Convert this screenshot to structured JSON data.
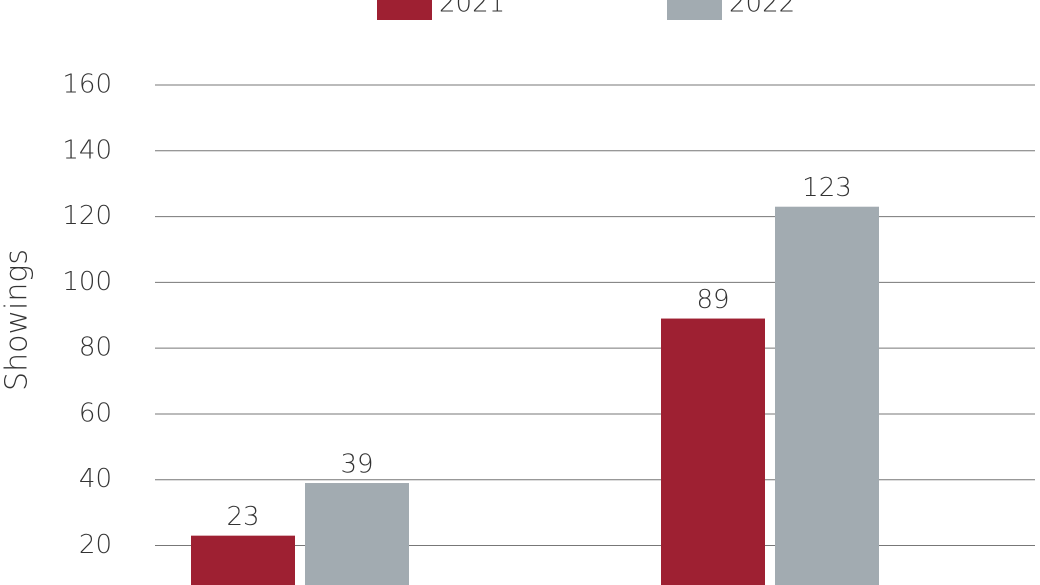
{
  "chart_data": {
    "type": "bar",
    "y_label": "Showings",
    "categories": [
      null,
      null
    ],
    "series": [
      {
        "name": "2021",
        "color": "#9e2032",
        "values": [
          23,
          89
        ]
      },
      {
        "name": "2022",
        "color": "#a2abb1",
        "values": [
          39,
          123
        ]
      }
    ],
    "ylim": [
      8,
      160
    ],
    "yticks": [
      20,
      40,
      60,
      80,
      100,
      120,
      140,
      160
    ],
    "grid": true,
    "legend": "top"
  }
}
